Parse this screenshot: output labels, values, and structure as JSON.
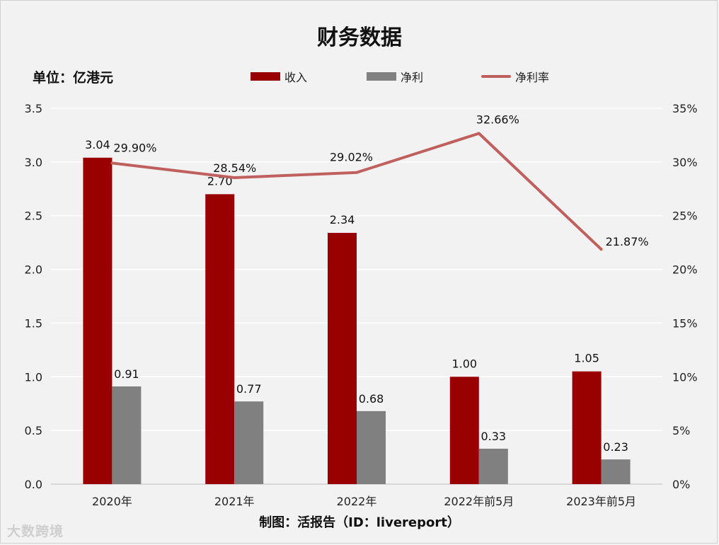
{
  "title": "财务数据",
  "unit_label": "单位：亿港元",
  "footer": "制图：活报告（ID：livereport）",
  "watermark": "大数跨境",
  "legend": {
    "revenue": "收入",
    "net_profit": "净利",
    "net_margin": "净利率"
  },
  "colors": {
    "revenue": "#990000",
    "net_profit": "#808080",
    "net_margin": "#c0605e"
  },
  "chart_data": {
    "type": "bar",
    "title": "财务数据",
    "xlabel": "",
    "ylabel": "单位：亿港元",
    "categories": [
      "2020年",
      "2021年",
      "2022年",
      "2022年前5月",
      "2023年前5月"
    ],
    "series": [
      {
        "name": "收入",
        "values": [
          3.04,
          2.7,
          2.34,
          1.0,
          1.05
        ],
        "labels": [
          "3.04",
          "2.70",
          "2.34",
          "1.00",
          "1.05"
        ]
      },
      {
        "name": "净利",
        "values": [
          0.91,
          0.77,
          0.68,
          0.33,
          0.23
        ],
        "labels": [
          "0.91",
          "0.77",
          "0.68",
          "0.33",
          "0.23"
        ]
      },
      {
        "name": "净利率",
        "type": "line",
        "axis": "right",
        "values": [
          29.9,
          28.54,
          29.02,
          32.66,
          21.87
        ],
        "labels": [
          "29.90%",
          "28.54%",
          "29.02%",
          "32.66%",
          "21.87%"
        ]
      }
    ],
    "ylim": [
      0,
      3.5
    ],
    "y_ticks": [
      "0.0",
      "0.5",
      "1.0",
      "1.5",
      "2.0",
      "2.5",
      "3.0",
      "3.5"
    ],
    "y2lim": [
      0,
      35
    ],
    "y2_ticks": [
      "0%",
      "5%",
      "10%",
      "15%",
      "20%",
      "25%",
      "30%",
      "35%"
    ],
    "grid": true,
    "legend_position": "top"
  }
}
